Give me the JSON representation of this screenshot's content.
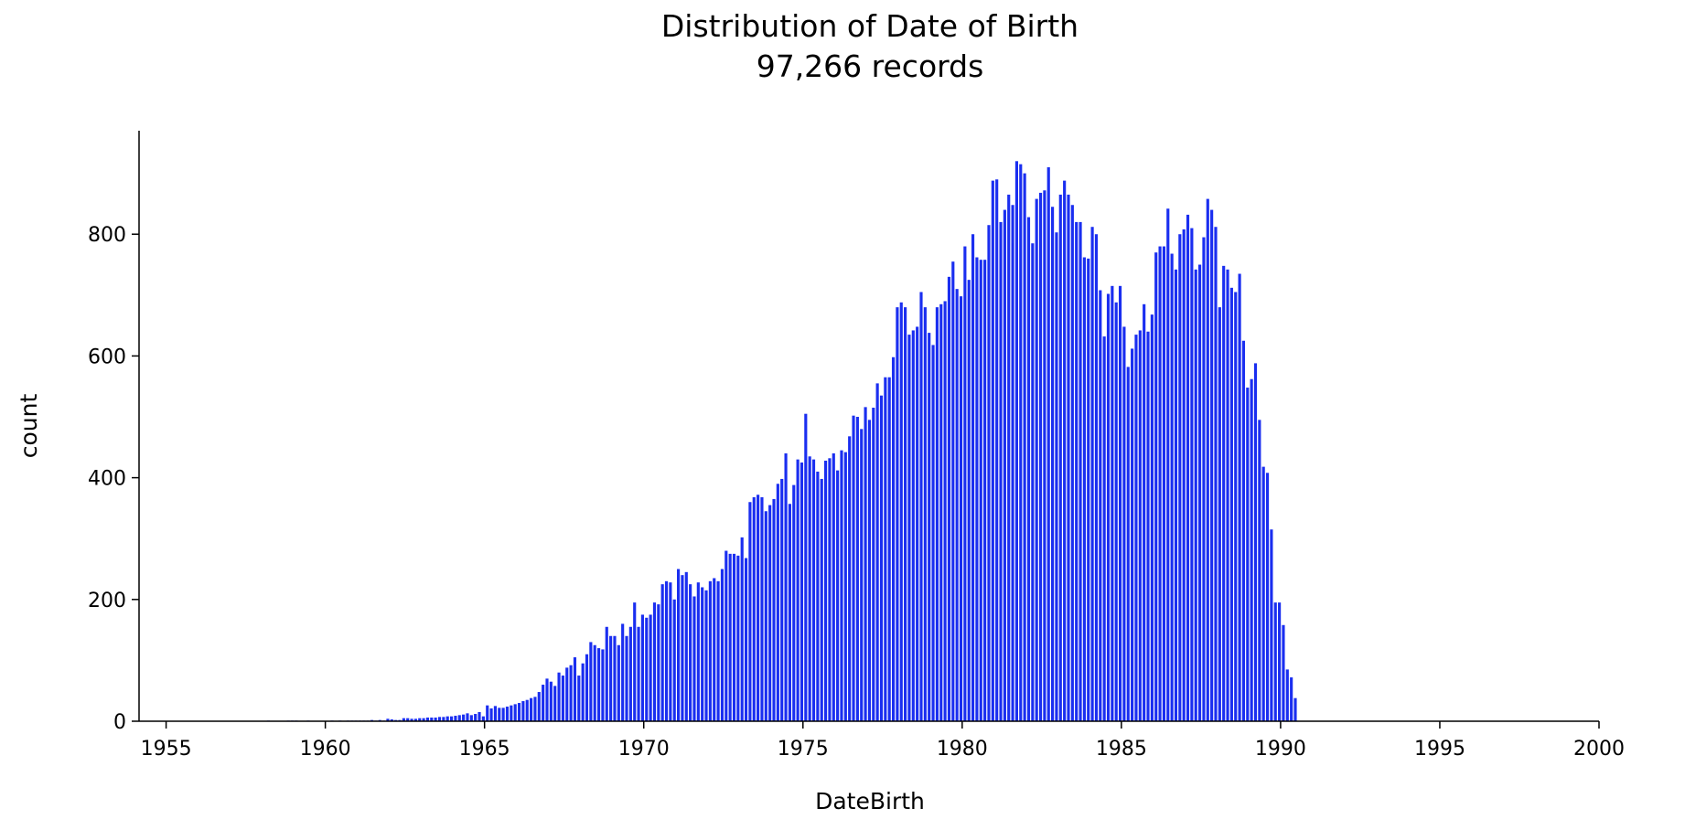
{
  "chart_data": {
    "type": "bar",
    "title": "Distribution of Date of Birth",
    "subtitle": "97,266 records",
    "xlabel": "DateBirth",
    "ylabel": "count",
    "xlim": [
      1954.15,
      2000.0
    ],
    "ylim": [
      0,
      970
    ],
    "x_ticks": [
      "1955",
      "1960",
      "1965",
      "1970",
      "1975",
      "1980",
      "1985",
      "1990",
      "1995",
      "2000"
    ],
    "y_ticks": [
      "0",
      "200",
      "400",
      "600",
      "800"
    ],
    "bar_color": "#1a2ef0",
    "grid": false,
    "bin_width_years": 0.125,
    "bins_start": 1954.15,
    "values": [
      0,
      0,
      0,
      0,
      0,
      0,
      0,
      0,
      0,
      0,
      0,
      0,
      0,
      0,
      0,
      0,
      0,
      0,
      0,
      0,
      0,
      0,
      0,
      0,
      0,
      0,
      0,
      0,
      0,
      0,
      0,
      0,
      1,
      0,
      0,
      0,
      0,
      1,
      1,
      1,
      0,
      0,
      1,
      0,
      0,
      0,
      0,
      0,
      1,
      0,
      1,
      0,
      1,
      1,
      1,
      1,
      1,
      1,
      2,
      1,
      2,
      1,
      4,
      3,
      2,
      2,
      5,
      5,
      4,
      4,
      5,
      5,
      6,
      6,
      6,
      7,
      7,
      8,
      8,
      9,
      10,
      11,
      13,
      10,
      12,
      15,
      8,
      26,
      21,
      25,
      22,
      22,
      24,
      26,
      28,
      30,
      33,
      35,
      38,
      40,
      48,
      60,
      70,
      65,
      58,
      80,
      75,
      88,
      92,
      105,
      75,
      95,
      110,
      130,
      125,
      120,
      118,
      155,
      140,
      140,
      125,
      160,
      140,
      155,
      195,
      155,
      175,
      170,
      175,
      195,
      192,
      225,
      230,
      228,
      200,
      250,
      240,
      245,
      225,
      205,
      228,
      220,
      215,
      230,
      235,
      230,
      250,
      280,
      275,
      275,
      272,
      302,
      268,
      360,
      368,
      372,
      368,
      345,
      355,
      365,
      390,
      398,
      440,
      357,
      388,
      430,
      425,
      505,
      435,
      430,
      410,
      398,
      428,
      432,
      440,
      412,
      445,
      442,
      468,
      502,
      500,
      480,
      516,
      495,
      515,
      555,
      535,
      565,
      565,
      598,
      680,
      688,
      680,
      635,
      642,
      648,
      705,
      680,
      638,
      618,
      680,
      685,
      690,
      730,
      755,
      710,
      698,
      780,
      725,
      800,
      762,
      758,
      758,
      815,
      888,
      890,
      820,
      840,
      865,
      848,
      920,
      915,
      900,
      828,
      785,
      858,
      868,
      872,
      910,
      845,
      803,
      865,
      888,
      865,
      848,
      820,
      820,
      762,
      760,
      812,
      800,
      708,
      632,
      702,
      715,
      688,
      715,
      648,
      582,
      612,
      635,
      642,
      685,
      640,
      668,
      770,
      780,
      780,
      842,
      768,
      742,
      800,
      808,
      832,
      810,
      742,
      750,
      795,
      858,
      840,
      812,
      680,
      748,
      742,
      712,
      705,
      735,
      625,
      548,
      562,
      588,
      495,
      418,
      408,
      315,
      195,
      195,
      158,
      85,
      72,
      38
    ]
  }
}
